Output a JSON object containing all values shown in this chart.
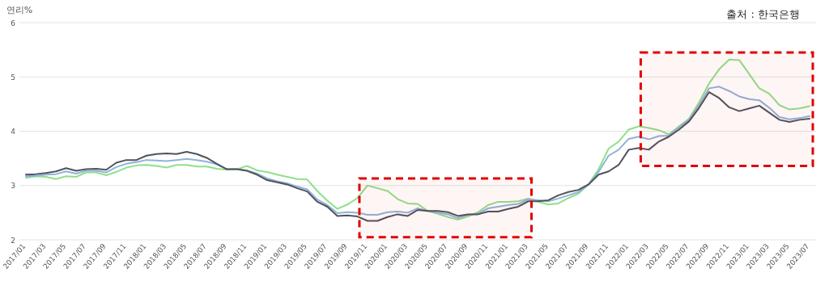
{
  "chart_data": {
    "type": "line",
    "ylabel": "연리%",
    "annotations": [
      "출처 : 한국은행"
    ],
    "categories": [
      "2017/01",
      null,
      "2017/03",
      null,
      "2017/05",
      null,
      "2017/07",
      null,
      "2017/09",
      null,
      "2017/11",
      null,
      "2018/01",
      null,
      "2018/03",
      null,
      "2018/05",
      null,
      "2018/07",
      null,
      "2018/09",
      null,
      "2018/11",
      null,
      "2019/01",
      null,
      "2019/03",
      null,
      "2019/05",
      null,
      "2019/07",
      null,
      "2019/09",
      null,
      "2019/11",
      null,
      "2020/01",
      null,
      "2020/03",
      null,
      "2020/05",
      null,
      "2020/07",
      null,
      "2020/09",
      null,
      "2020/11",
      null,
      "2021/01",
      null,
      "2021/03",
      null,
      "2021/05",
      null,
      "2021/07",
      null,
      "2021/09",
      null,
      "2021/11",
      null,
      "2022/01",
      null,
      "2022/03",
      null,
      "2022/05",
      null,
      "2022/07",
      null,
      "2022/09",
      null,
      "2022/11",
      null,
      "2023/01",
      null,
      "2023/03",
      null,
      "2023/05",
      null,
      "2023/07"
    ],
    "series": [
      {
        "color": "#8fe08a",
        "values": [
          3.14,
          3.17,
          3.16,
          3.12,
          3.17,
          3.16,
          3.24,
          3.24,
          3.19,
          3.25,
          3.33,
          3.37,
          3.38,
          3.36,
          3.33,
          3.38,
          3.38,
          3.35,
          3.35,
          3.31,
          3.29,
          3.3,
          3.36,
          3.28,
          3.25,
          3.2,
          3.16,
          3.12,
          3.11,
          2.9,
          2.72,
          2.57,
          2.65,
          2.77,
          3.0,
          2.95,
          2.9,
          2.75,
          2.67,
          2.66,
          2.53,
          2.48,
          2.42,
          2.37,
          2.43,
          2.51,
          2.64,
          2.7,
          2.7,
          2.71,
          2.76,
          2.7,
          2.65,
          2.67,
          2.77,
          2.85,
          3.02,
          3.3,
          3.68,
          3.81,
          4.03,
          4.09,
          4.06,
          4.02,
          3.94,
          4.09,
          4.23,
          4.53,
          4.88,
          5.14,
          5.32,
          5.31,
          5.05,
          4.79,
          4.69,
          4.48,
          4.4,
          4.42,
          4.46
        ]
      },
      {
        "color": "#8fb3d9",
        "values": [
          3.17,
          3.18,
          3.2,
          3.21,
          3.26,
          3.22,
          3.27,
          3.27,
          3.24,
          3.34,
          3.4,
          3.43,
          3.47,
          3.46,
          3.45,
          3.47,
          3.49,
          3.47,
          3.44,
          3.39,
          3.3,
          3.3,
          3.28,
          3.22,
          3.13,
          3.08,
          3.04,
          2.98,
          2.93,
          2.74,
          2.64,
          2.49,
          2.51,
          2.5,
          2.46,
          2.46,
          2.51,
          2.52,
          2.5,
          2.58,
          2.53,
          2.5,
          2.47,
          2.4,
          2.46,
          2.48,
          2.58,
          2.61,
          2.64,
          2.66,
          2.75,
          2.73,
          2.71,
          2.76,
          2.82,
          2.88,
          3.02,
          3.25,
          3.55,
          3.66,
          3.86,
          3.9,
          3.85,
          3.91,
          3.92,
          4.07,
          4.21,
          4.48,
          4.79,
          4.82,
          4.74,
          4.64,
          4.59,
          4.57,
          4.43,
          4.26,
          4.22,
          4.24,
          4.28
        ]
      },
      {
        "color": "#50535c",
        "values": [
          3.2,
          3.21,
          3.23,
          3.26,
          3.32,
          3.27,
          3.3,
          3.31,
          3.29,
          3.42,
          3.47,
          3.47,
          3.55,
          3.58,
          3.59,
          3.58,
          3.62,
          3.58,
          3.51,
          3.4,
          3.3,
          3.3,
          3.27,
          3.2,
          3.1,
          3.06,
          3.02,
          2.95,
          2.89,
          2.7,
          2.61,
          2.44,
          2.45,
          2.43,
          2.35,
          2.35,
          2.42,
          2.47,
          2.44,
          2.55,
          2.53,
          2.53,
          2.51,
          2.44,
          2.47,
          2.47,
          2.52,
          2.52,
          2.57,
          2.61,
          2.71,
          2.71,
          2.73,
          2.82,
          2.88,
          2.92,
          3.02,
          3.2,
          3.26,
          3.38,
          3.66,
          3.69,
          3.66,
          3.81,
          3.9,
          4.03,
          4.18,
          4.43,
          4.72,
          4.61,
          4.44,
          4.37,
          4.42,
          4.47,
          4.34,
          4.21,
          4.17,
          4.21,
          4.23
        ]
      }
    ],
    "ylim": [
      2,
      6
    ],
    "yticks": [
      2,
      3,
      4,
      5,
      6
    ],
    "grid": "y",
    "bands": [
      {
        "axis": "x",
        "from": "2019/11",
        "to": "2021/03",
        "color": "#e00000"
      },
      {
        "axis": "x",
        "from": "2022/03",
        "to": "2023/07",
        "color": "#e00000"
      }
    ]
  }
}
